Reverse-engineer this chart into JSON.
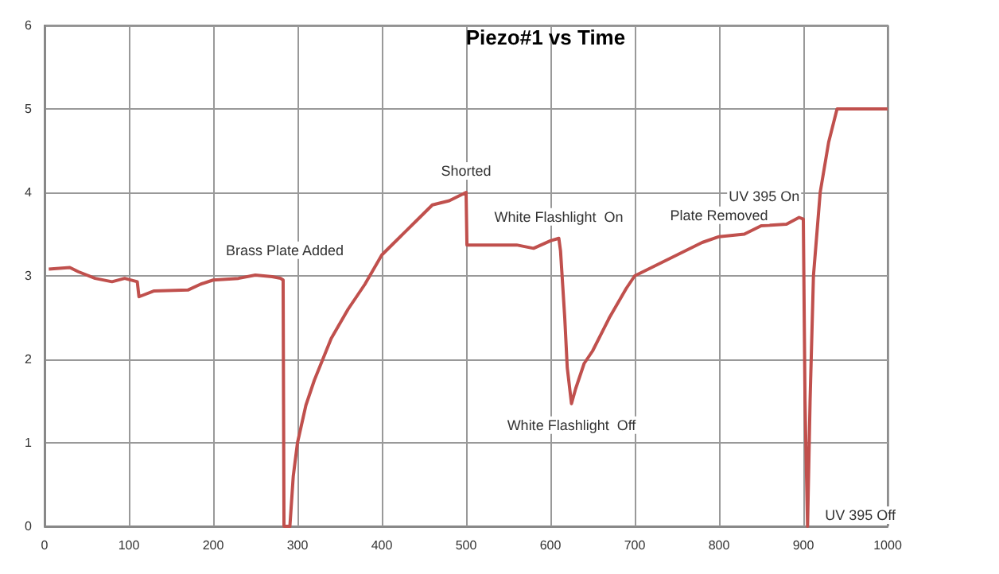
{
  "chart_data": {
    "type": "line",
    "title": "Piezo#1 vs Time",
    "x": [
      5,
      30,
      40,
      60,
      80,
      95,
      110,
      112,
      130,
      170,
      185,
      200,
      230,
      250,
      270,
      280,
      283,
      284,
      291,
      295,
      300,
      310,
      320,
      340,
      360,
      380,
      400,
      420,
      440,
      460,
      480,
      500,
      501,
      520,
      560,
      580,
      600,
      610,
      612,
      617,
      620,
      625,
      630,
      640,
      650,
      670,
      690,
      700,
      720,
      750,
      780,
      800,
      830,
      850,
      880,
      895,
      900,
      902,
      905,
      908,
      912,
      920,
      930,
      940,
      1000
    ],
    "series": [
      {
        "color": "#c0504d",
        "values": [
          3.08,
          3.1,
          3.05,
          2.97,
          2.93,
          2.97,
          2.93,
          2.75,
          2.82,
          2.83,
          2.9,
          2.95,
          2.97,
          3.01,
          2.99,
          2.97,
          2.95,
          0,
          0,
          0.6,
          1.0,
          1.45,
          1.75,
          2.25,
          2.6,
          2.9,
          3.25,
          3.45,
          3.65,
          3.85,
          3.9,
          4.0,
          3.37,
          3.37,
          3.37,
          3.33,
          3.42,
          3.45,
          3.3,
          2.5,
          1.9,
          1.47,
          1.65,
          1.95,
          2.1,
          2.5,
          2.85,
          3.0,
          3.1,
          3.25,
          3.4,
          3.47,
          3.5,
          3.6,
          3.62,
          3.7,
          3.68,
          1.5,
          0,
          1.5,
          3.0,
          4.0,
          4.6,
          5.0,
          5.0
        ]
      }
    ],
    "xlim": [
      0,
      1000
    ],
    "xticks": [
      0,
      100,
      200,
      300,
      400,
      500,
      600,
      700,
      800,
      900,
      1000
    ],
    "ylim": [
      0,
      6
    ],
    "yticks": [
      0,
      1,
      2,
      3,
      4,
      5,
      6
    ],
    "grid": true,
    "marker": "none",
    "line_style": "solid",
    "annotations": [
      {
        "text": "Brass Plate Added",
        "x": 285,
        "y": 3.05
      },
      {
        "text": "Shorted",
        "x": 500,
        "y": 4.0
      },
      {
        "text": "White Flashlight  On",
        "x": 610,
        "y": 3.45
      },
      {
        "text": "White Flashlight  Off",
        "x": 625,
        "y": 1.47
      },
      {
        "text": "Plate Removed",
        "x": 800,
        "y": 3.47
      },
      {
        "text": "UV 395 On",
        "x": 895,
        "y": 3.7
      },
      {
        "text": "UV 395 Off",
        "x": 905,
        "y": 0
      }
    ]
  }
}
